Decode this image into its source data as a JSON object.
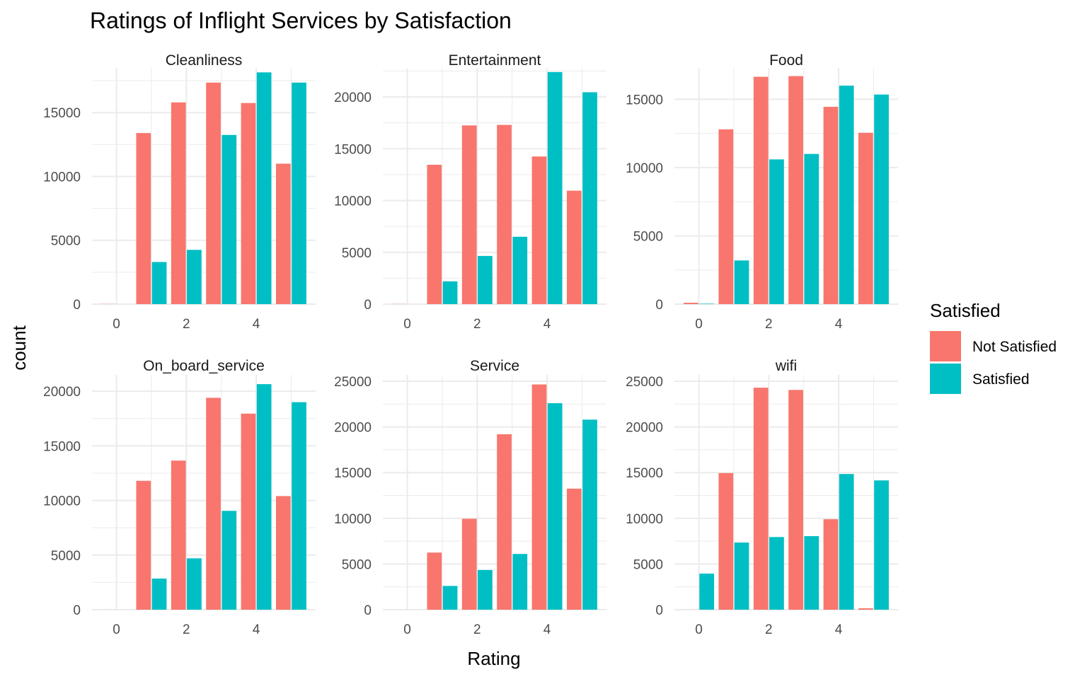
{
  "chart_data": {
    "type": "bar",
    "title": "Ratings of Inflight Services by Satisfaction",
    "xlabel": "Rating",
    "ylabel": "count",
    "grid": true,
    "legend": {
      "title": "Satisfied",
      "placement": "right",
      "entries": [
        {
          "label": "Not Satisfied",
          "color": "#F8766D"
        },
        {
          "label": "Satisfied",
          "color": "#00BFC4"
        }
      ]
    },
    "series_colors": {
      "Not Satisfied": "#F8766D",
      "Satisfied": "#00BFC4"
    },
    "x_ticks": [
      0,
      2,
      4
    ],
    "categories": [
      0,
      1,
      2,
      3,
      4,
      5
    ],
    "facets": [
      {
        "name": "Cleanliness",
        "ylim": [
          0,
          18500
        ],
        "y_ticks": [
          0,
          5000,
          10000,
          15000
        ],
        "y_tick_labels": [
          "0",
          "5000",
          "10000",
          "15000"
        ],
        "series": [
          {
            "name": "Not Satisfied",
            "values": [
              12,
              13400,
              15800,
              17350,
              15750,
              11000
            ]
          },
          {
            "name": "Satisfied",
            "values": [
              0,
              3300,
              4250,
              13250,
              18150,
              17350
            ]
          }
        ]
      },
      {
        "name": "Entertainment",
        "ylim": [
          0,
          22800
        ],
        "y_ticks": [
          0,
          5000,
          10000,
          15000,
          20000
        ],
        "y_tick_labels": [
          "0",
          "5000",
          "10000",
          "15000",
          "20000"
        ],
        "series": [
          {
            "name": "Not Satisfied",
            "values": [
              14,
              13450,
              17250,
              17300,
              14250,
              10950
            ]
          },
          {
            "name": "Satisfied",
            "values": [
              0,
              2200,
              4650,
              6500,
              22400,
              20450
            ]
          }
        ]
      },
      {
        "name": "Food",
        "ylim": [
          0,
          17300
        ],
        "y_ticks": [
          0,
          5000,
          10000,
          15000
        ],
        "y_tick_labels": [
          "0",
          "5000",
          "10000",
          "15000"
        ],
        "series": [
          {
            "name": "Not Satisfied",
            "values": [
              100,
              12800,
              16650,
              16700,
              14450,
              12550
            ]
          },
          {
            "name": "Satisfied",
            "values": [
              30,
              3200,
              10600,
              11000,
              16000,
              15350
            ]
          }
        ]
      },
      {
        "name": "On_board_service",
        "ylim": [
          0,
          21500
        ],
        "y_ticks": [
          0,
          5000,
          10000,
          15000,
          20000
        ],
        "y_tick_labels": [
          "0",
          "5000",
          "10000",
          "15000",
          "20000"
        ],
        "series": [
          {
            "name": "Not Satisfied",
            "values": [
              3,
              11800,
              13650,
              19400,
              17950,
              10400
            ]
          },
          {
            "name": "Satisfied",
            "values": [
              0,
              2850,
              4700,
              9050,
              20650,
              19000
            ]
          }
        ]
      },
      {
        "name": "Service",
        "ylim": [
          0,
          25700
        ],
        "y_ticks": [
          0,
          5000,
          10000,
          15000,
          20000,
          25000
        ],
        "y_tick_labels": [
          "0",
          "5000",
          "10000",
          "15000",
          "20000",
          "25000"
        ],
        "series": [
          {
            "name": "Not Satisfied",
            "values": [
              2,
              6250,
              9950,
              19200,
              24650,
              13250
            ]
          },
          {
            "name": "Satisfied",
            "values": [
              0,
              2600,
              4350,
              6100,
              22600,
              20800
            ]
          }
        ]
      },
      {
        "name": "wifi",
        "ylim": [
          0,
          25700
        ],
        "y_ticks": [
          0,
          5000,
          10000,
          15000,
          20000,
          25000
        ],
        "y_tick_labels": [
          "0",
          "5000",
          "10000",
          "15000",
          "20000",
          "25000"
        ],
        "series": [
          {
            "name": "Not Satisfied",
            "values": [
              3,
              14950,
              24300,
              24050,
              9900,
              150
            ]
          },
          {
            "name": "Satisfied",
            "values": [
              3950,
              7350,
              7950,
              8050,
              14850,
              14150
            ]
          }
        ]
      }
    ]
  }
}
